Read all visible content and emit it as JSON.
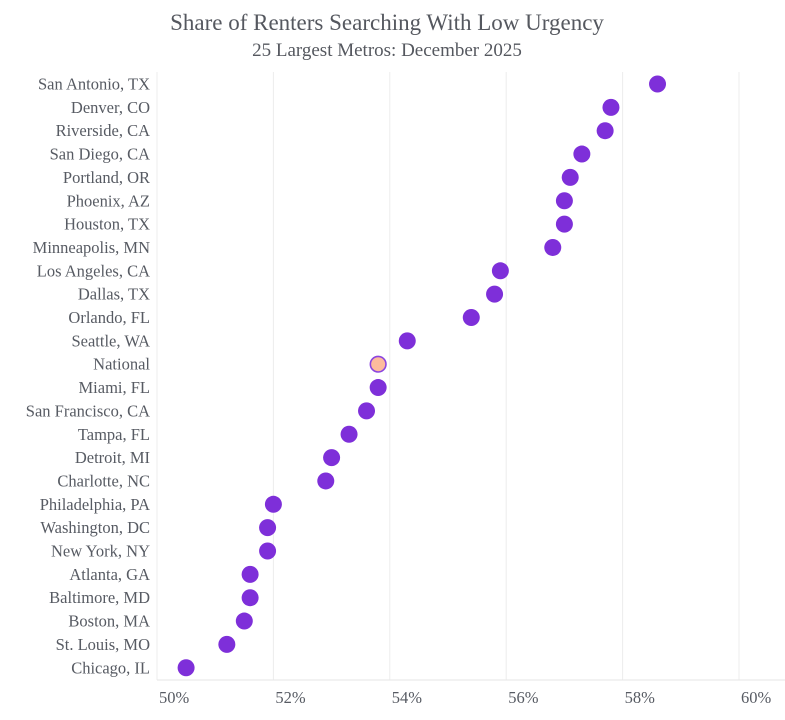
{
  "chart_data": {
    "type": "scatter",
    "subtype": "dot-plot",
    "title": "Share of Renters Searching With Low Urgency",
    "subtitle": "25 Largest Metros: December 2025",
    "xlabel": "",
    "ylabel": "",
    "xlim": [
      50,
      61
    ],
    "x_ticks": [
      50,
      52,
      54,
      56,
      58,
      60
    ],
    "x_tick_labels": [
      "50%",
      "52%",
      "54%",
      "56%",
      "58%",
      "60%"
    ],
    "grid": "vertical",
    "legend": "none",
    "colors": {
      "metro": "#7e2fd9",
      "national_fill": "#fdbb9d",
      "national_stroke": "#8b45e0"
    },
    "categories": [
      "San Antonio, TX",
      "Denver, CO",
      "Riverside, CA",
      "San Diego, CA",
      "Portland, OR",
      "Phoenix, AZ",
      "Houston, TX",
      "Minneapolis, MN",
      "Los Angeles, CA",
      "Dallas, TX",
      "Orlando, FL",
      "Seattle, WA",
      "National",
      "Miami, FL",
      "San Francisco, CA",
      "Tampa, FL",
      "Detroit, MI",
      "Charlotte, NC",
      "Philadelphia, PA",
      "Washington, DC",
      "New York, NY",
      "Atlanta, GA",
      "Baltimore, MD",
      "Boston, MA",
      "St. Louis, MO",
      "Chicago, IL"
    ],
    "values": [
      58.6,
      57.8,
      57.7,
      57.3,
      57.1,
      57.0,
      57.0,
      56.8,
      55.9,
      55.8,
      55.4,
      54.3,
      53.8,
      53.8,
      53.6,
      53.3,
      53.0,
      52.9,
      52.0,
      51.9,
      51.9,
      51.6,
      51.6,
      51.5,
      51.2,
      50.5
    ],
    "highlight": "National"
  }
}
